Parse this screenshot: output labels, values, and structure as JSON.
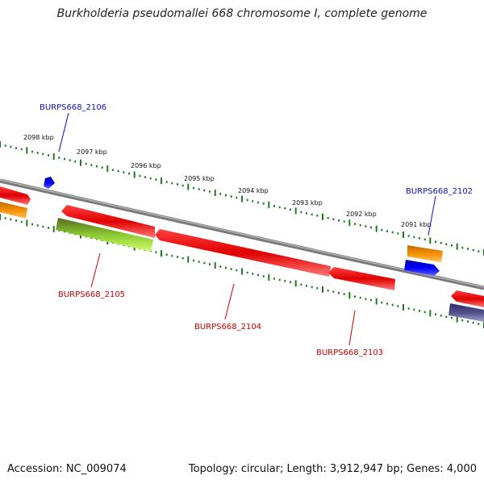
{
  "title": "Burkholderia pseudomallei 668 chromosome I, complete genome",
  "footer": {
    "accession": "Accession: NC_009074",
    "summary": "Topology: circular; Length: 3,912,947 bp; Genes: 4,000"
  },
  "colors": {
    "backbone": "#7a7a7a",
    "tick": "#1e7a1e",
    "gene_red": "#e00000",
    "gene_orange": "#f08a00",
    "gene_blue": "#0000ee",
    "gene_green": "#7fc21a",
    "gene_purple": "#50508a",
    "label_blue": "#1010c0",
    "label_red": "#cc0000"
  },
  "scale_labels": [
    "2098 kbp",
    "2097 kbp",
    "2096 kbp",
    "2095 kbp",
    "2094 kbp",
    "2093 kbp",
    "2092 kbp",
    "2091 kbp"
  ],
  "gene_labels": {
    "g2106": "BURPS668_2106",
    "g2105": "BURPS668_2105",
    "g2104": "BURPS668_2104",
    "g2103": "BURPS668_2103",
    "g2102": "BURPS668_2102"
  }
}
